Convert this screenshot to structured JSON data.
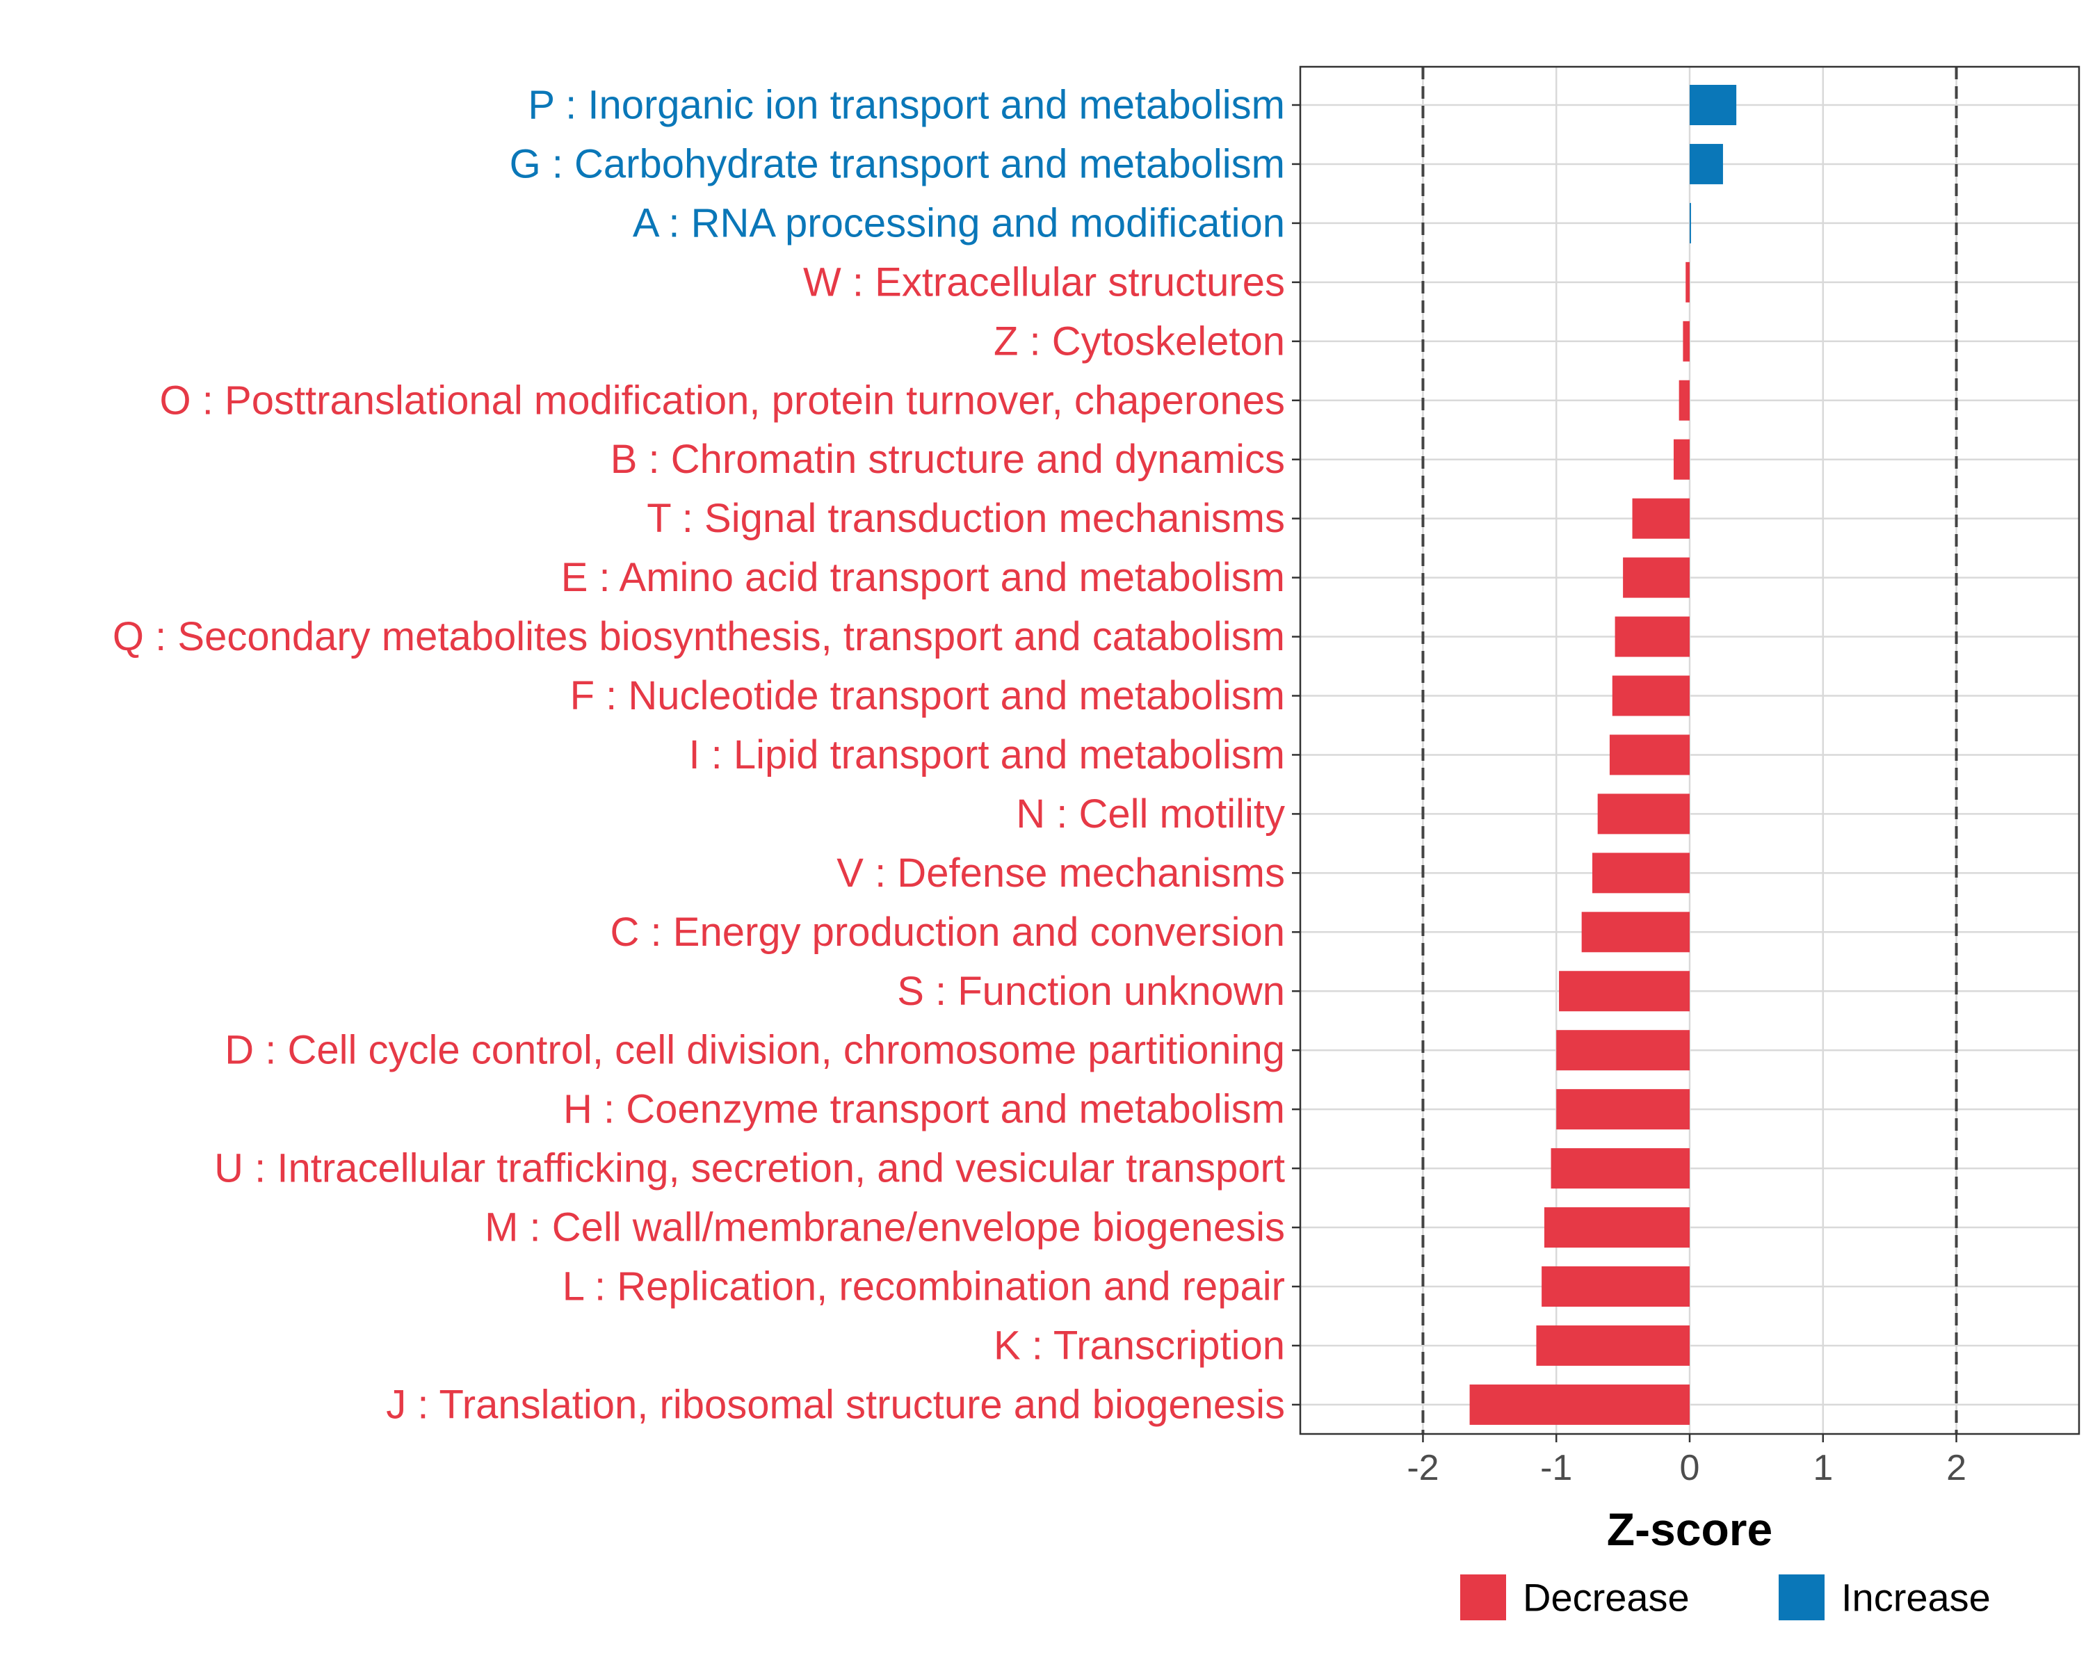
{
  "chart_data": {
    "type": "bar",
    "orientation": "horizontal",
    "title": "",
    "xlabel": "Z-score",
    "ylabel": "",
    "xlim": [
      -2.92,
      2.92
    ],
    "xticks": [
      -2,
      -1,
      0,
      1,
      2
    ],
    "xtick_labels": [
      "-2",
      "-1",
      "0",
      "1",
      "2"
    ],
    "reference_lines": [
      -2,
      2
    ],
    "grid": true,
    "legend": {
      "placement": "bottom",
      "entries": [
        {
          "label": "Decrease",
          "color": "#e63946"
        },
        {
          "label": "Increase",
          "color": "#0a77b8"
        }
      ]
    },
    "categories": [
      "P : Inorganic ion transport and metabolism",
      "G : Carbohydrate transport and metabolism",
      "A : RNA processing and modification",
      "W : Extracellular structures",
      "Z : Cytoskeleton",
      "O : Posttranslational modification, protein turnover, chaperones",
      "B : Chromatin structure and dynamics",
      "T : Signal transduction mechanisms",
      "E : Amino acid transport and metabolism",
      "Q : Secondary metabolites biosynthesis, transport and catabolism",
      "F : Nucleotide transport and metabolism",
      "I : Lipid transport and metabolism",
      "N : Cell motility",
      "V : Defense mechanisms",
      "C : Energy production and conversion",
      "S : Function unknown",
      "D : Cell cycle control, cell division, chromosome partitioning",
      "H : Coenzyme transport and metabolism",
      "U : Intracellular trafficking, secretion, and vesicular transport",
      "M : Cell wall/membrane/envelope biogenesis",
      "L : Replication, recombination and repair",
      "K : Transcription",
      "J : Translation, ribosomal structure and biogenesis"
    ],
    "values": [
      0.35,
      0.25,
      0.01,
      -0.03,
      -0.05,
      -0.08,
      -0.12,
      -0.43,
      -0.5,
      -0.56,
      -0.58,
      -0.6,
      -0.69,
      -0.73,
      -0.81,
      -0.98,
      -1.0,
      -1.0,
      -1.04,
      -1.09,
      -1.11,
      -1.15,
      -1.65
    ],
    "direction": [
      "Increase",
      "Increase",
      "Increase",
      "Decrease",
      "Decrease",
      "Decrease",
      "Decrease",
      "Decrease",
      "Decrease",
      "Decrease",
      "Decrease",
      "Decrease",
      "Decrease",
      "Decrease",
      "Decrease",
      "Decrease",
      "Decrease",
      "Decrease",
      "Decrease",
      "Decrease",
      "Decrease",
      "Decrease",
      "Decrease"
    ]
  }
}
